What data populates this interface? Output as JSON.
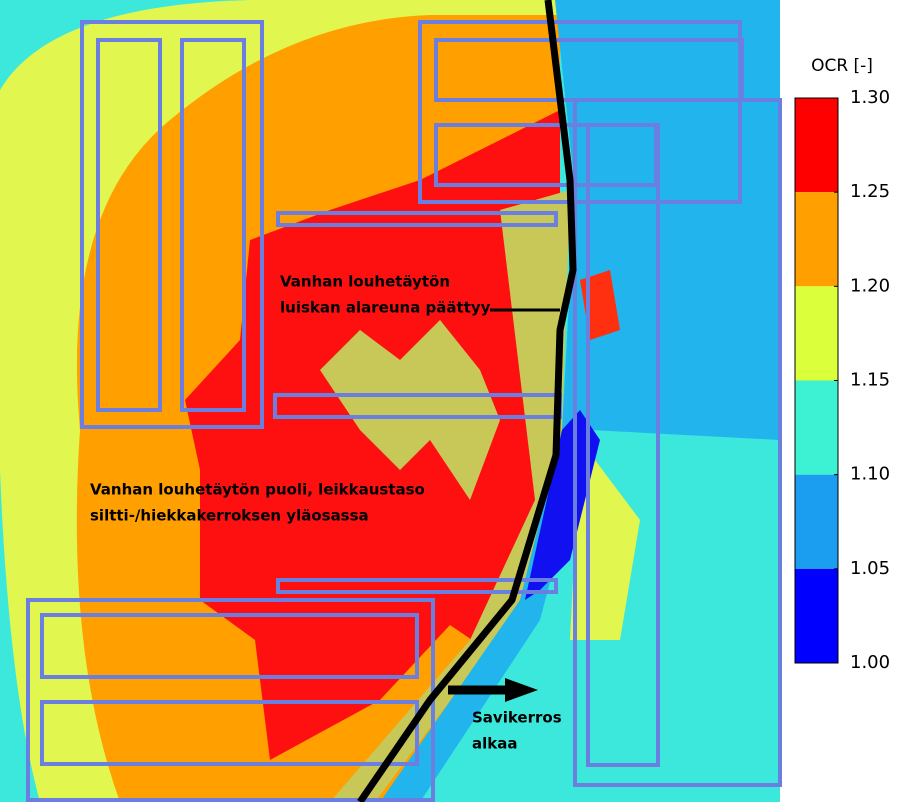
{
  "colorbar": {
    "title": "OCR [-]",
    "ticks": [
      {
        "value": 1.3,
        "label": "1.30"
      },
      {
        "value": 1.25,
        "label": "1.25"
      },
      {
        "value": 1.2,
        "label": "1.20"
      },
      {
        "value": 1.15,
        "label": "1.15"
      },
      {
        "value": 1.1,
        "label": "1.10"
      },
      {
        "value": 1.05,
        "label": "1.05"
      },
      {
        "value": 1.0,
        "label": "1.00"
      }
    ],
    "colors": [
      "#ff0000",
      "#ffa000",
      "#dcff3c",
      "#3cf2d2",
      "#1c9ef0",
      "#0000ff"
    ]
  },
  "annotations": [
    {
      "lines": [
        "Vanhan louhetäytön",
        "luiskan alareuna päättyy"
      ]
    },
    {
      "lines": [
        "Vanhan louhetäytön puoli, leikkaustaso",
        "siltti-/hiekkakerroksen yläosassa"
      ]
    },
    {
      "lines": [
        "Savikerros",
        "alkaa"
      ]
    }
  ]
}
